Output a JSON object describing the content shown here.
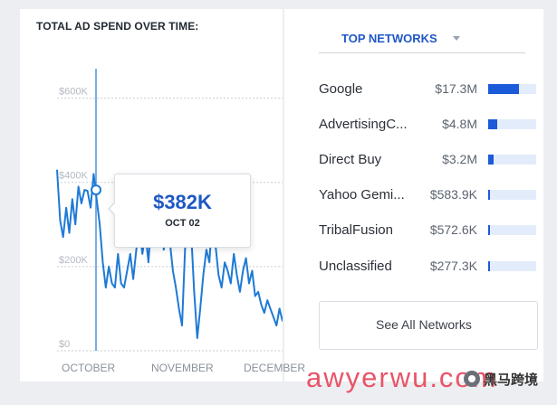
{
  "left_panel": {
    "title": "TOTAL AD SPEND OVER TIME:",
    "tooltip": {
      "value": "$382K",
      "date": "OCT 02"
    }
  },
  "right_panel": {
    "dropdown_label": "TOP NETWORKS",
    "networks": [
      {
        "name": "Google",
        "value": "$17.3M",
        "share": 0.65
      },
      {
        "name": "AdvertisingC...",
        "value": "$4.8M",
        "share": 0.18
      },
      {
        "name": "Direct Buy",
        "value": "$3.2M",
        "share": 0.11
      },
      {
        "name": "Yahoo Gemi...",
        "value": "$583.9K",
        "share": 0.03
      },
      {
        "name": "TribalFusion",
        "value": "$572.6K",
        "share": 0.03
      },
      {
        "name": "Unclassified",
        "value": "$277.3K",
        "share": 0.015
      }
    ],
    "see_all_label": "See All Networks"
  },
  "watermark": {
    "text": "awyerwu.com",
    "badge": "黑马跨境"
  },
  "colors": {
    "accent": "#1f58c4",
    "line": "#1e7ad6",
    "bar": "#1b5ad9"
  },
  "chart_data": {
    "type": "line",
    "title": "TOTAL AD SPEND OVER TIME:",
    "y_ticks": [
      "$0",
      "$200K",
      "$400K",
      "$600K"
    ],
    "x_ticks": [
      "OCTOBER",
      "NOVEMBER",
      "DECEMBER"
    ],
    "ylim": [
      0,
      700000
    ],
    "grid": "horizontal-dotted",
    "highlight": {
      "label": "OCT 02",
      "index": 9,
      "value": 382000
    },
    "series": [
      {
        "values": [
          430000,
          310000,
          270000,
          340000,
          280000,
          360000,
          300000,
          390000,
          350000,
          382000,
          380000,
          340000,
          420000,
          360000,
          300000,
          210000,
          150000,
          200000,
          160000,
          150000,
          230000,
          160000,
          150000,
          190000,
          230000,
          170000,
          240000,
          300000,
          230000,
          280000,
          210000,
          320000,
          270000,
          350000,
          310000,
          240000,
          300000,
          260000,
          190000,
          150000,
          100000,
          60000,
          240000,
          320000,
          280000,
          140000,
          30000,
          100000,
          180000,
          240000,
          210000,
          330000,
          250000,
          180000,
          150000,
          210000,
          190000,
          160000,
          230000,
          180000,
          140000,
          190000,
          220000,
          160000,
          190000,
          130000,
          140000,
          110000,
          90000,
          120000,
          100000,
          80000,
          60000,
          100000,
          70000
        ]
      }
    ]
  }
}
